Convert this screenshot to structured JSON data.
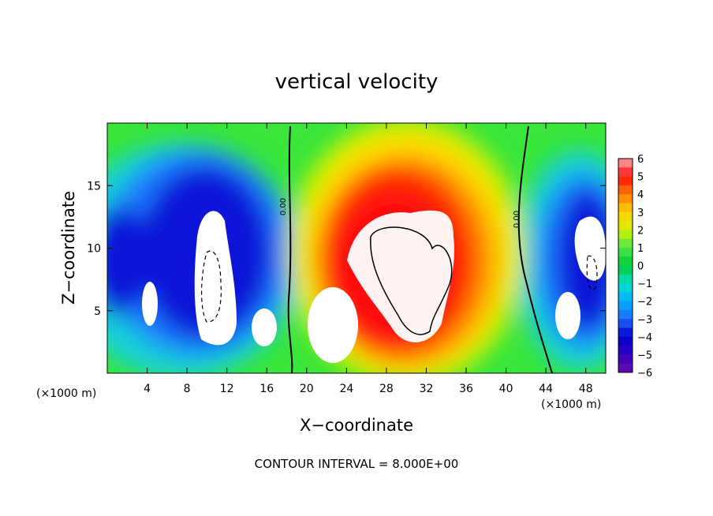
{
  "chart_data": {
    "type": "heatmap",
    "title": "vertical velocity",
    "xlabel": "X−coordinate",
    "ylabel": "Z−coordinate",
    "x_unit_label": "(×1000 m)",
    "x_unit_label_right": "(×1000 m)",
    "x_ticks": [
      4,
      8,
      12,
      16,
      20,
      24,
      28,
      32,
      36,
      40,
      44,
      48
    ],
    "y_ticks": [
      5,
      10,
      15
    ],
    "xlim": [
      0,
      50
    ],
    "ylim": [
      0,
      20
    ],
    "footer": "CONTOUR INTERVAL = 8.000E+00",
    "colorbar_ticks": [
      "6",
      "5",
      "4",
      "3",
      "2",
      "1",
      "0",
      "−1",
      "−2",
      "−3",
      "−4",
      "−5",
      "−6"
    ],
    "colorbar_range": [
      -6,
      6
    ],
    "contour_labels": [
      "0.00",
      "0.00"
    ],
    "features": [
      {
        "kind": "updraft",
        "x": 30,
        "z": 9,
        "peak": 9,
        "note": "saturated core (white) above color max"
      },
      {
        "kind": "updraft",
        "x": 22.5,
        "z": 3.5,
        "peak": 9
      },
      {
        "kind": "downdraft",
        "x": 9,
        "z": 8,
        "peak": -9
      },
      {
        "kind": "downdraft",
        "x": 47,
        "z": 8,
        "peak": -9
      }
    ],
    "colors": {
      "minus6": "#6a0dad",
      "minus4": "#0000d0",
      "minus2": "#00c8e6",
      "zero": "#2fe02f",
      "plus2": "#e6e600",
      "plus4": "#ff0000",
      "plus6": "#ffaaaa",
      "saturated": "#ffffff"
    }
  }
}
